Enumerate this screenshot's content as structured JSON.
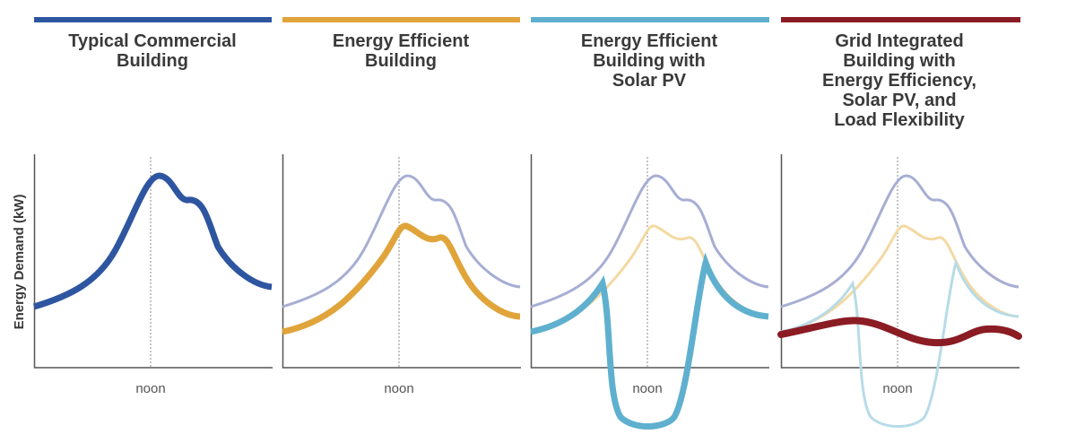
{
  "y_axis_label": "Energy Demand (kW)",
  "panels": [
    {
      "title_lines": [
        "Typical Commercial",
        "Building"
      ],
      "x_label": "noon"
    },
    {
      "title_lines": [
        "Energy Efficient",
        "Building"
      ],
      "x_label": "noon"
    },
    {
      "title_lines": [
        "Energy Efficient",
        "Building with",
        "Solar PV"
      ],
      "x_label": "noon"
    },
    {
      "title_lines": [
        "Grid Integrated",
        "Building with",
        "Energy Efficiency,",
        "Solar PV, and",
        "Load Flexibility"
      ],
      "x_label": "noon"
    }
  ]
}
